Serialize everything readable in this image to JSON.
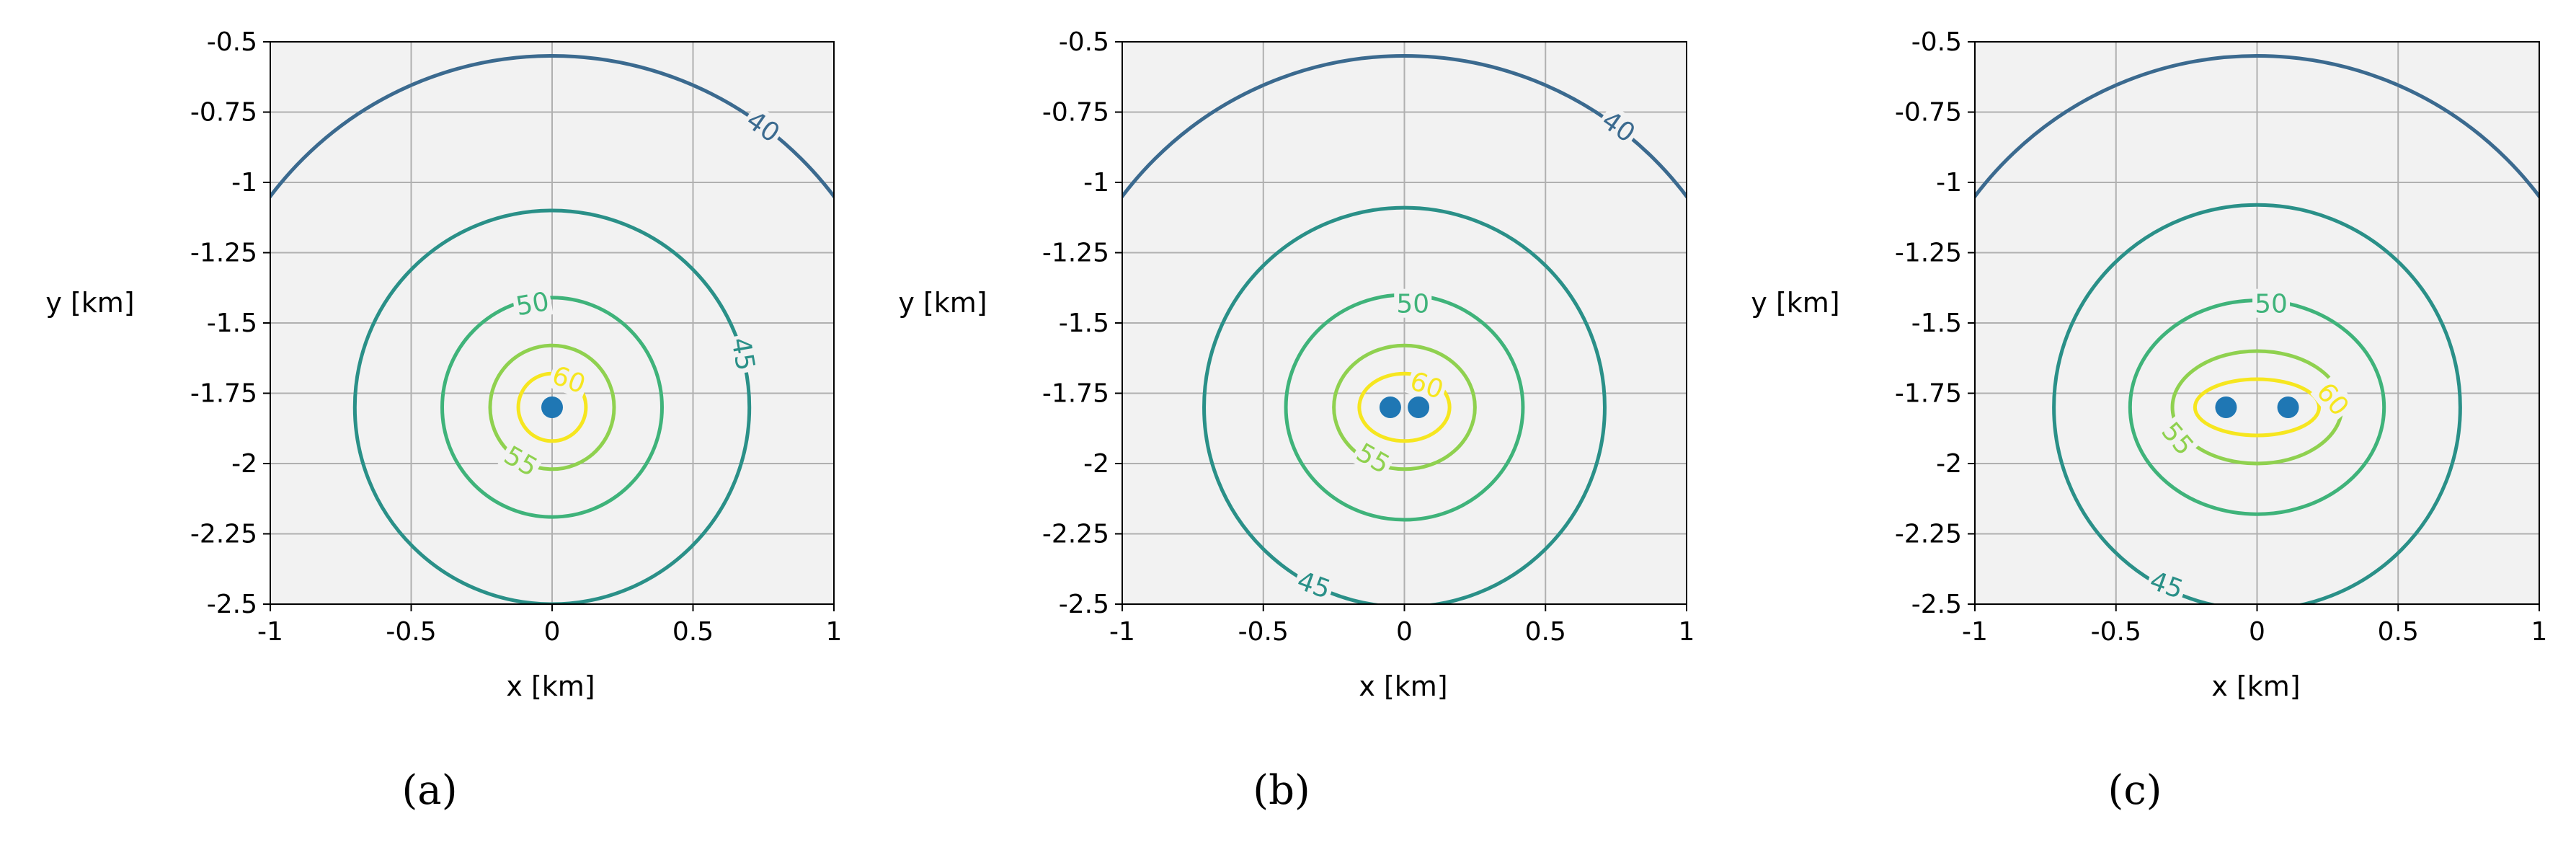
{
  "colors": {
    "plot_background": "#f2f2f2",
    "grid": "#b0b0b0",
    "source_marker": "#1f77b4",
    "level_40": "#3b6a8f",
    "level_45": "#2a9088",
    "level_50": "#3fb37a",
    "level_55": "#8fd14f",
    "level_60": "#f6e61f"
  },
  "chart_data": [
    {
      "type": "contour",
      "caption": "(a)",
      "xlabel": "x [km]",
      "ylabel": "y [km]",
      "xlim": [
        -1,
        1
      ],
      "ylim": [
        -2.5,
        -0.5
      ],
      "x_ticks": [
        "-1",
        "-0.5",
        "0",
        "0.5",
        "1"
      ],
      "y_ticks": [
        "-0.5",
        "-0.75",
        "-1",
        "-1.25",
        "-1.5",
        "-1.75",
        "-2",
        "-2.25",
        "-2.5"
      ],
      "grid": true,
      "sources": [
        {
          "x": 0,
          "y": -1.8
        }
      ],
      "contours": [
        {
          "level": 40,
          "label": "40",
          "shape": "arc",
          "cx": 0,
          "cy": -1.8,
          "r": 1.25,
          "label_at": {
            "x": 0.75,
            "y": -0.8
          },
          "label_rot": 35
        },
        {
          "level": 45,
          "label": "45",
          "shape": "ellipse",
          "cx": 0,
          "cy": -1.8,
          "rx": 0.7,
          "ry": 0.7,
          "label_at": {
            "x": 0.68,
            "y": -1.61
          },
          "label_rot": 80
        },
        {
          "level": 50,
          "label": "50",
          "shape": "ellipse",
          "cx": 0,
          "cy": -1.8,
          "rx": 0.39,
          "ry": 0.39,
          "label_at": {
            "x": -0.07,
            "y": -1.43
          },
          "label_rot": -10
        },
        {
          "level": 55,
          "label": "55",
          "shape": "ellipse",
          "cx": 0,
          "cy": -1.8,
          "rx": 0.22,
          "ry": 0.22,
          "label_at": {
            "x": -0.11,
            "y": -1.99
          },
          "label_rot": 30
        },
        {
          "level": 60,
          "label": "60",
          "shape": "ellipse",
          "cx": 0,
          "cy": -1.8,
          "rx": 0.12,
          "ry": 0.12,
          "label_at": {
            "x": 0.06,
            "y": -1.7
          },
          "label_rot": 20
        }
      ]
    },
    {
      "type": "contour",
      "caption": "(b)",
      "xlabel": "x [km]",
      "ylabel": "y [km]",
      "xlim": [
        -1,
        1
      ],
      "ylim": [
        -2.5,
        -0.5
      ],
      "x_ticks": [
        "-1",
        "-0.5",
        "0",
        "0.5",
        "1"
      ],
      "y_ticks": [
        "-0.5",
        "-0.75",
        "-1",
        "-1.25",
        "-1.5",
        "-1.75",
        "-2",
        "-2.25",
        "-2.5"
      ],
      "grid": true,
      "sources": [
        {
          "x": -0.05,
          "y": -1.8
        },
        {
          "x": 0.05,
          "y": -1.8
        }
      ],
      "contours": [
        {
          "level": 40,
          "label": "40",
          "shape": "arc",
          "cx": 0,
          "cy": -1.8,
          "r": 1.25,
          "label_at": {
            "x": 0.76,
            "y": -0.8
          },
          "label_rot": 35
        },
        {
          "level": 45,
          "label": "45",
          "shape": "ellipse",
          "cx": 0,
          "cy": -1.8,
          "rx": 0.71,
          "ry": 0.71,
          "label_at": {
            "x": -0.32,
            "y": -2.43
          },
          "label_rot": 20
        },
        {
          "level": 50,
          "label": "50",
          "shape": "ellipse",
          "cx": 0,
          "cy": -1.8,
          "rx": 0.42,
          "ry": 0.4,
          "label_at": {
            "x": 0.03,
            "y": -1.43
          },
          "label_rot": 0
        },
        {
          "level": 55,
          "label": "55",
          "shape": "ellipse",
          "cx": 0,
          "cy": -1.8,
          "rx": 0.25,
          "ry": 0.22,
          "label_at": {
            "x": -0.11,
            "y": -1.98
          },
          "label_rot": 30
        },
        {
          "level": 60,
          "label": "60",
          "shape": "ellipse",
          "cx": 0,
          "cy": -1.8,
          "rx": 0.16,
          "ry": 0.12,
          "label_at": {
            "x": 0.08,
            "y": -1.72
          },
          "label_rot": 20
        }
      ]
    },
    {
      "type": "contour",
      "caption": "(c)",
      "xlabel": "x [km]",
      "ylabel": "y [km]",
      "xlim": [
        -1,
        1
      ],
      "ylim": [
        -2.5,
        -0.5
      ],
      "x_ticks": [
        "-1",
        "-0.5",
        "0",
        "0.5",
        "1"
      ],
      "y_ticks": [
        "-0.5",
        "-0.75",
        "-1",
        "-1.25",
        "-1.5",
        "-1.75",
        "-2",
        "-2.25",
        "-2.5"
      ],
      "grid": true,
      "sources": [
        {
          "x": -0.11,
          "y": -1.8
        },
        {
          "x": 0.11,
          "y": -1.8
        }
      ],
      "contours": [
        {
          "level": 40,
          "label": "",
          "shape": "arc",
          "cx": 0,
          "cy": -1.8,
          "r": 1.25,
          "label_at": null,
          "label_rot": 0
        },
        {
          "level": 45,
          "label": "45",
          "shape": "ellipse",
          "cx": 0,
          "cy": -1.8,
          "rx": 0.72,
          "ry": 0.72,
          "label_at": {
            "x": -0.32,
            "y": -2.43
          },
          "label_rot": 20
        },
        {
          "level": 50,
          "label": "50",
          "shape": "ellipse",
          "cx": 0,
          "cy": -1.8,
          "rx": 0.45,
          "ry": 0.38,
          "label_at": {
            "x": 0.05,
            "y": -1.43
          },
          "label_rot": 0
        },
        {
          "level": 55,
          "label": "55",
          "shape": "ellipse",
          "cx": 0,
          "cy": -1.8,
          "rx": 0.3,
          "ry": 0.2,
          "label_at": {
            "x": -0.28,
            "y": -1.91
          },
          "label_rot": 50
        },
        {
          "level": 60,
          "label": "60",
          "shape": "ellipse",
          "cx": 0,
          "cy": -1.8,
          "rx": 0.22,
          "ry": 0.1,
          "label_at": {
            "x": 0.27,
            "y": -1.77
          },
          "label_rot": 50
        }
      ]
    }
  ]
}
